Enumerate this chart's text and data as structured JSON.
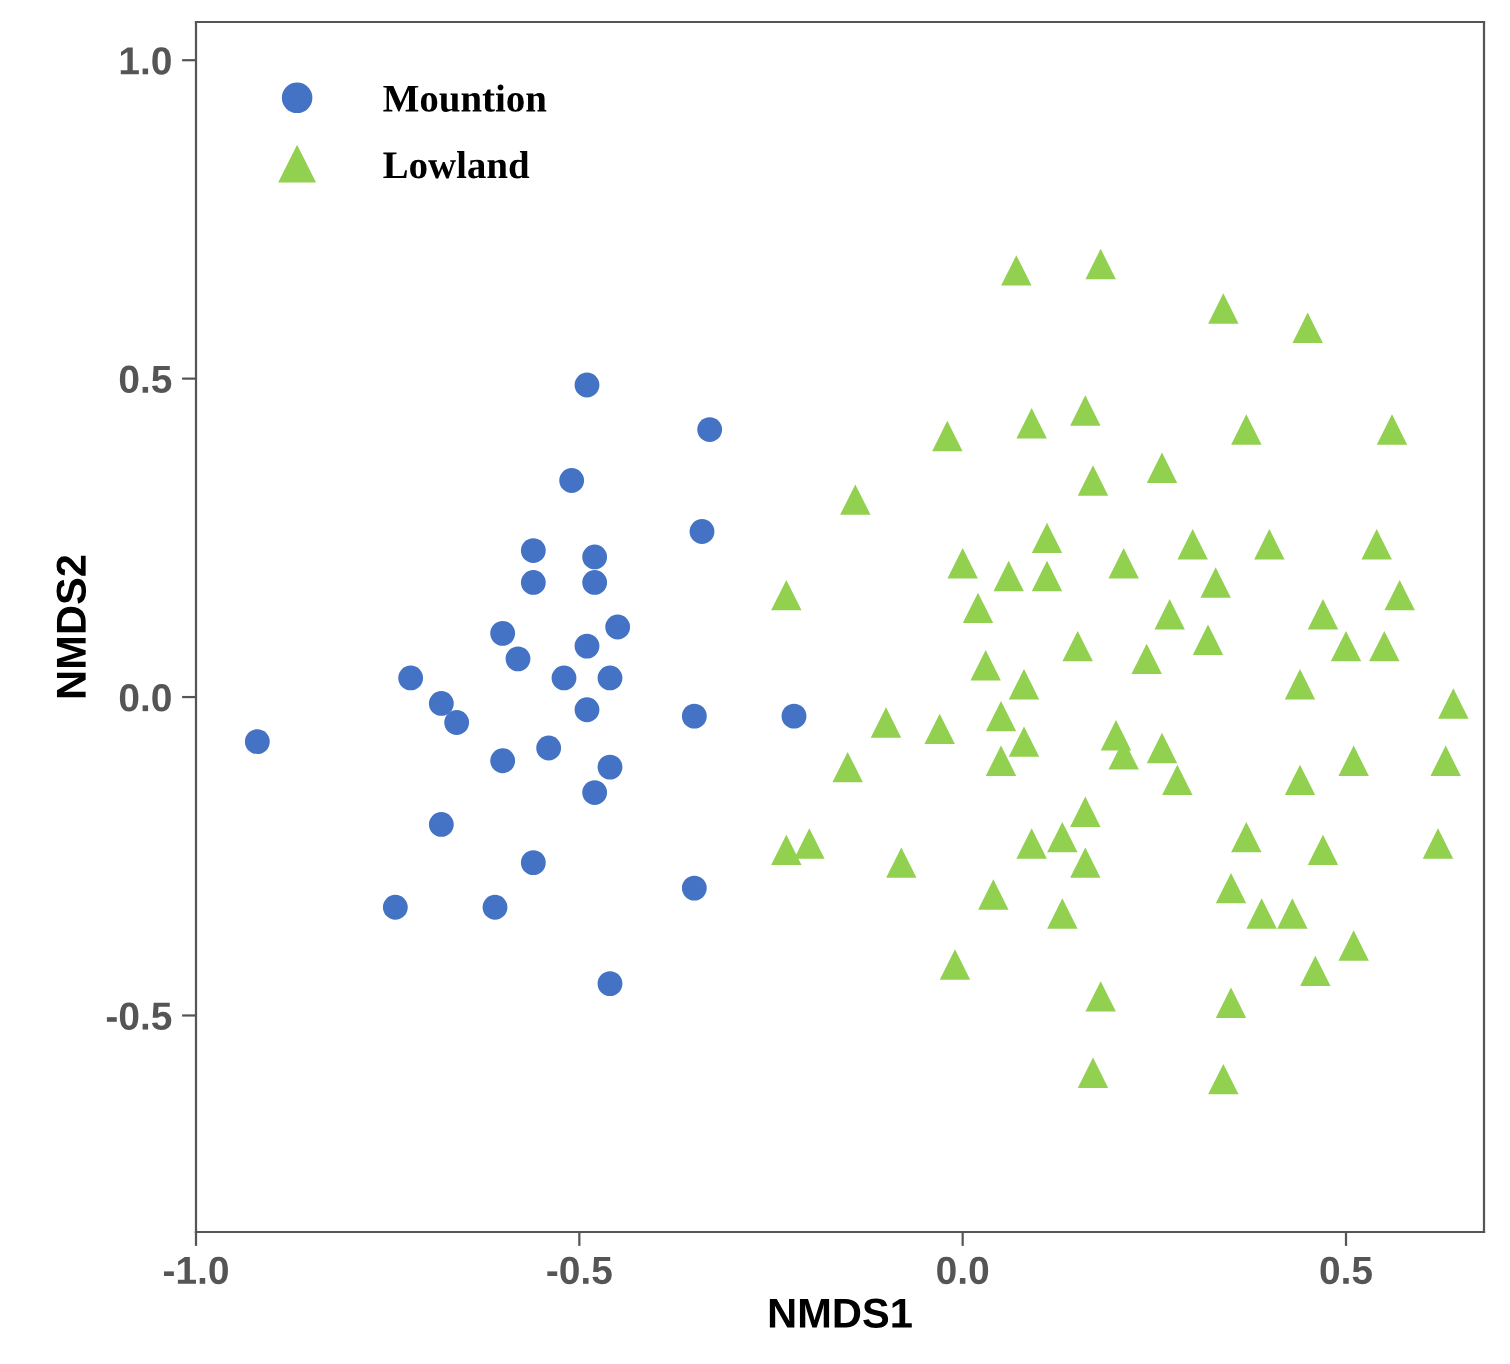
{
  "chart_data": {
    "type": "scatter",
    "xlabel": "NMDS1",
    "ylabel": "NMDS2",
    "xlim": [
      -1.0,
      0.68
    ],
    "ylim": [
      -0.84,
      1.06
    ],
    "xticks": [
      {
        "value": -1,
        "label": "-1.0"
      },
      {
        "value": -0.5,
        "label": "-0.5"
      },
      {
        "value": 0,
        "label": "0.0"
      },
      {
        "value": 0.5,
        "label": "0.5"
      }
    ],
    "yticks": [
      {
        "value": -0.5,
        "label": "-0.5"
      },
      {
        "value": 0,
        "label": "0.0"
      },
      {
        "value": 0.5,
        "label": "0.5"
      },
      {
        "value": 1,
        "label": "1.0"
      }
    ],
    "grid": false,
    "legend": "top left",
    "series": [
      {
        "name": "Mountion",
        "color": "#4472c4",
        "marker": "circle",
        "x": [
          -0.49,
          -0.33,
          -0.51,
          -0.34,
          -0.56,
          -0.48,
          -0.56,
          -0.48,
          -0.45,
          -0.6,
          -0.49,
          -0.58,
          -0.72,
          -0.52,
          -0.46,
          -0.68,
          -0.66,
          -0.49,
          -0.35,
          -0.22,
          -0.92,
          -0.54,
          -0.6,
          -0.46,
          -0.48,
          -0.68,
          -0.56,
          -0.35,
          -0.74,
          -0.61,
          -0.46
        ],
        "values": [
          0.49,
          0.42,
          0.34,
          0.26,
          0.23,
          0.22,
          0.18,
          0.18,
          0.11,
          0.1,
          0.08,
          0.06,
          0.03,
          0.03,
          0.03,
          -0.01,
          -0.04,
          -0.02,
          -0.03,
          -0.03,
          -0.07,
          -0.08,
          -0.1,
          -0.11,
          -0.15,
          -0.2,
          -0.26,
          -0.3,
          -0.33,
          -0.33,
          -0.45
        ]
      },
      {
        "name": "Lowland",
        "color": "#92d050",
        "marker": "triangle",
        "x": [
          0.07,
          0.18,
          0.34,
          0.45,
          -0.02,
          0.09,
          0.16,
          0.37,
          0.56,
          0.17,
          0.26,
          -0.14,
          0.11,
          0.0,
          0.06,
          0.11,
          0.21,
          0.3,
          0.4,
          0.54,
          0.33,
          0.57,
          -0.23,
          0.02,
          0.27,
          0.47,
          0.15,
          0.32,
          0.24,
          0.5,
          0.55,
          0.03,
          0.08,
          0.44,
          0.64,
          -0.1,
          -0.03,
          0.05,
          0.08,
          0.05,
          0.2,
          0.21,
          0.26,
          0.28,
          -0.15,
          0.44,
          0.51,
          0.63,
          0.16,
          0.13,
          0.09,
          0.16,
          -0.23,
          -0.2,
          -0.08,
          0.37,
          0.47,
          0.62,
          0.04,
          0.13,
          0.35,
          0.39,
          0.43,
          0.51,
          0.46,
          -0.01,
          0.18,
          0.35,
          0.17,
          0.34
        ],
        "values": [
          0.67,
          0.68,
          0.61,
          0.58,
          0.41,
          0.43,
          0.45,
          0.42,
          0.42,
          0.34,
          0.36,
          0.31,
          0.25,
          0.21,
          0.19,
          0.19,
          0.21,
          0.24,
          0.24,
          0.24,
          0.18,
          0.16,
          0.16,
          0.14,
          0.13,
          0.13,
          0.08,
          0.09,
          0.06,
          0.08,
          0.08,
          0.05,
          0.02,
          0.02,
          -0.01,
          -0.04,
          -0.05,
          -0.03,
          -0.07,
          -0.1,
          -0.06,
          -0.09,
          -0.08,
          -0.13,
          -0.11,
          -0.13,
          -0.1,
          -0.1,
          -0.18,
          -0.22,
          -0.23,
          -0.26,
          -0.24,
          -0.23,
          -0.26,
          -0.22,
          -0.24,
          -0.23,
          -0.31,
          -0.34,
          -0.3,
          -0.34,
          -0.34,
          -0.39,
          -0.43,
          -0.42,
          -0.47,
          -0.48,
          -0.59,
          -0.6
        ]
      }
    ]
  }
}
